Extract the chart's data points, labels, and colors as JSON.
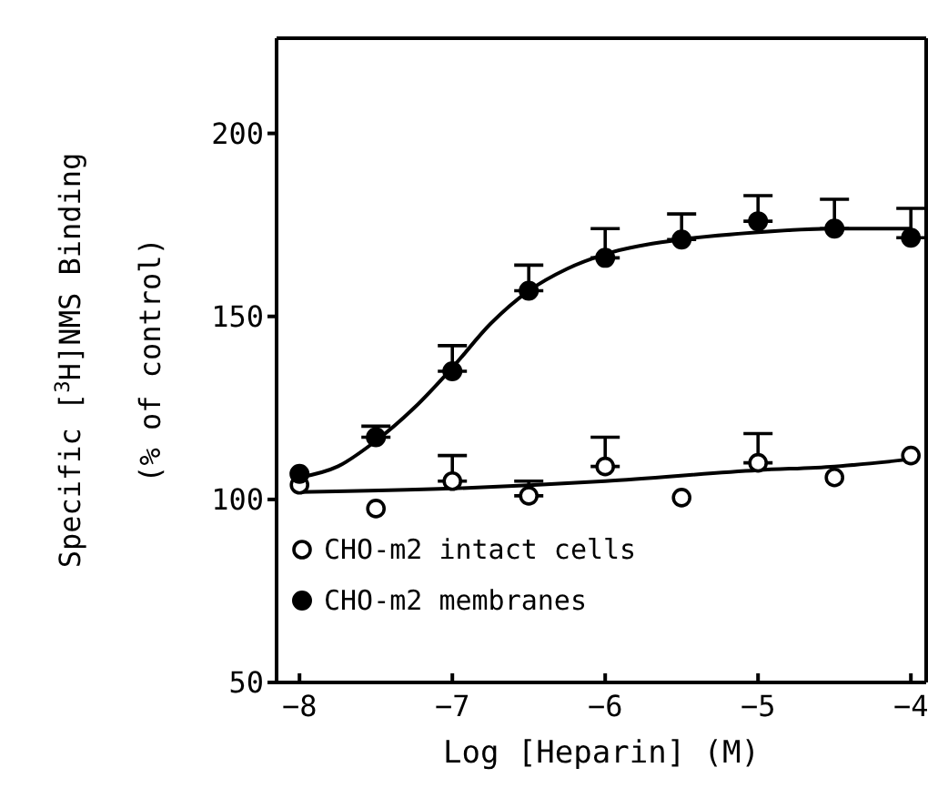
{
  "chart_data": {
    "type": "scatter",
    "xlabel": "Log [Heparin] (M)",
    "ylabel": "Specific [$^{3}$H]NMS Binding\n(% of control)",
    "x": [
      -8,
      -7.5,
      -7,
      -6.5,
      -6,
      -5.5,
      -5,
      -4.5,
      -4
    ],
    "series": [
      {
        "name": "CHO-m2 intact cells",
        "color": "#000000",
        "marker": "open circle",
        "values": [
          104,
          97.5,
          105,
          101,
          109,
          100.5,
          110,
          106,
          112
        ],
        "errors": [
          null,
          null,
          [
            105,
            112
          ],
          [
            101,
            105
          ],
          [
            109,
            117
          ],
          null,
          [
            110,
            118
          ],
          null,
          null
        ]
      },
      {
        "name": "CHO-m2 membranes",
        "color": "#000000",
        "marker": "circle",
        "values": [
          107,
          117,
          135,
          157,
          166,
          171,
          176,
          174,
          171.5
        ],
        "errors": [
          null,
          [
            117,
            120
          ],
          [
            135,
            142
          ],
          [
            157,
            164
          ],
          [
            166,
            174
          ],
          [
            171,
            178
          ],
          [
            176,
            183
          ],
          [
            174,
            182
          ],
          [
            171.5,
            179.5
          ]
        ]
      },
      {
        "type": "line",
        "color": "#000000",
        "marker": "none",
        "x": [
          -8,
          -7,
          -6,
          -5,
          -4.5,
          -4
        ],
        "values": [
          102,
          103,
          105,
          108,
          109,
          111
        ]
      },
      {
        "type": "line",
        "color": "#000000",
        "marker": "none",
        "x": [
          -8,
          -7.75,
          -7.5,
          -7.25,
          -7,
          -6.75,
          -6.5,
          -6.25,
          -6,
          -5.5,
          -5,
          -4.5,
          -4
        ],
        "values": [
          106,
          109,
          116,
          125,
          136,
          148,
          157,
          163,
          167,
          171,
          173,
          174,
          174
        ]
      }
    ],
    "xlim": [
      -8.15,
      -3.9
    ],
    "xticks": [
      -8,
      -7,
      -6,
      -5,
      -4
    ],
    "ylim": [
      50,
      226
    ],
    "yticks": [
      50,
      100,
      150,
      200
    ],
    "legend": "bottom left",
    "grid": false
  }
}
